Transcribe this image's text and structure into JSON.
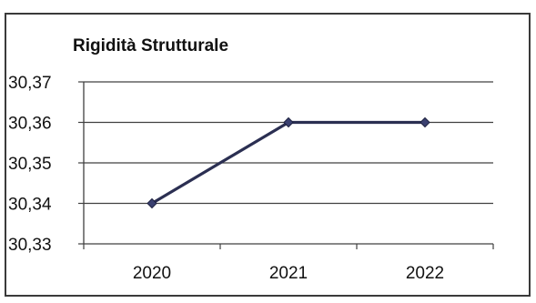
{
  "chart_data": {
    "type": "line",
    "title": "Rigidità Strutturale",
    "categories": [
      "2020",
      "2021",
      "2022"
    ],
    "series": [
      {
        "values": [
          30.34,
          30.36,
          30.36
        ]
      }
    ],
    "ylim": [
      30.33,
      30.37
    ],
    "y_ticks": [
      30.33,
      30.34,
      30.35,
      30.36,
      30.37
    ],
    "y_tick_labels": [
      "30,33",
      "30,34",
      "30,35",
      "30,36",
      "30,37"
    ],
    "grid": true,
    "legend": "none",
    "colors": {
      "series": "#2b2f52",
      "marker": "#3a4070",
      "grid": "#404040",
      "axis": "#404040"
    }
  }
}
